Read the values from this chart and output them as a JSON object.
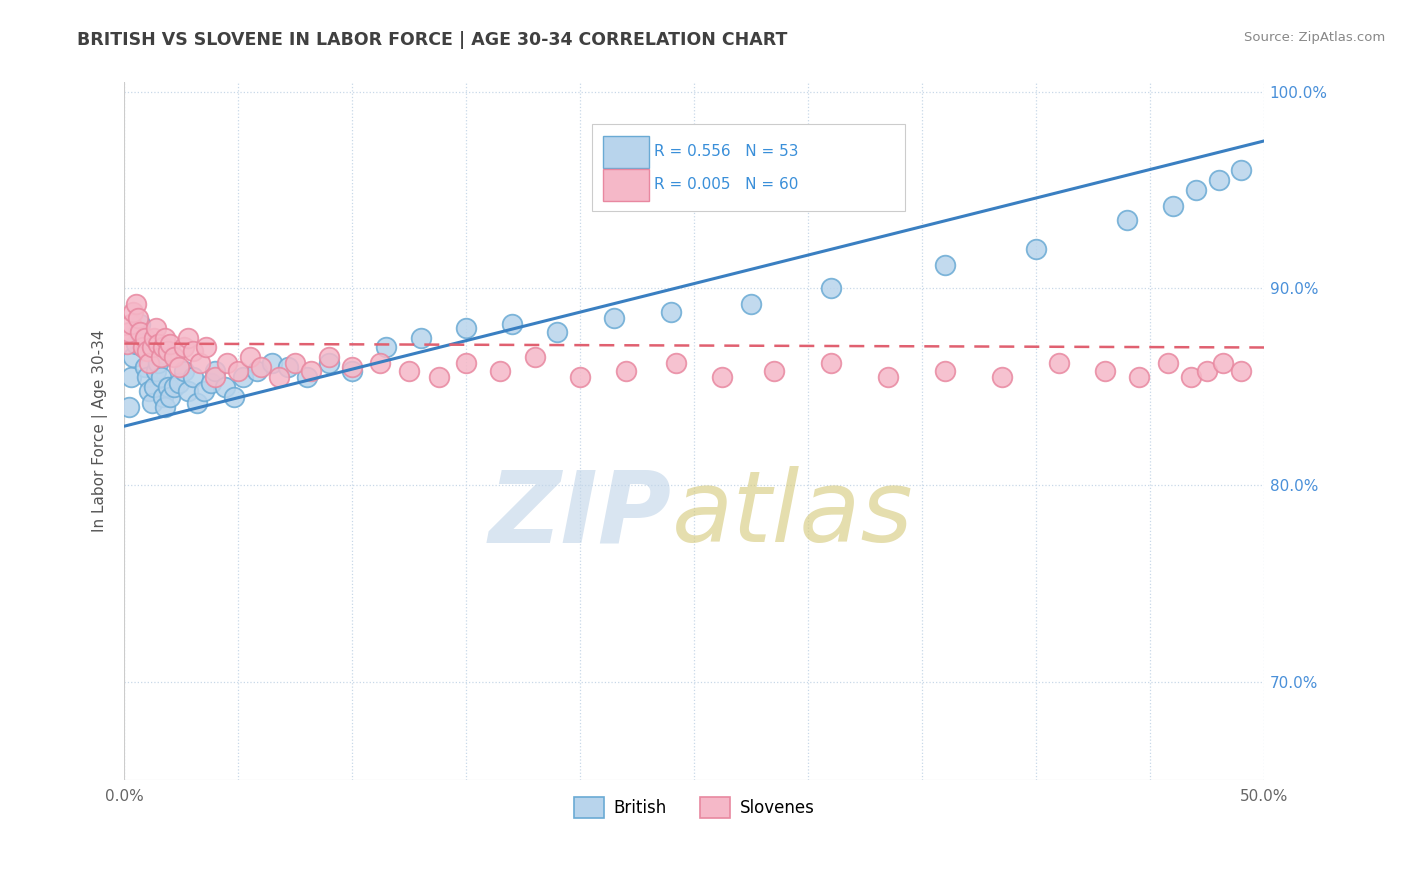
{
  "title": "BRITISH VS SLOVENE IN LABOR FORCE | AGE 30-34 CORRELATION CHART",
  "source": "Source: ZipAtlas.com",
  "ylabel": "In Labor Force | Age 30-34",
  "xlim": [
    0.0,
    0.5
  ],
  "ylim": [
    0.65,
    1.005
  ],
  "xticks": [
    0.0,
    0.05,
    0.1,
    0.15,
    0.2,
    0.25,
    0.3,
    0.35,
    0.4,
    0.45,
    0.5
  ],
  "yticks": [
    0.7,
    0.8,
    0.9,
    1.0
  ],
  "ytick_labels_right": [
    "70.0%",
    "80.0%",
    "90.0%",
    "100.0%"
  ],
  "british_R": 0.556,
  "british_N": 53,
  "slovene_R": 0.005,
  "slovene_N": 60,
  "british_color": "#b8d4ec",
  "slovene_color": "#f5b8c8",
  "british_edge_color": "#6aaad4",
  "slovene_edge_color": "#e888a0",
  "british_line_color": "#3a7fc1",
  "slovene_line_color": "#e06070",
  "legend_R_color": "#3a8fd9",
  "background_color": "#ffffff",
  "grid_color": "#c8d8e8",
  "title_color": "#404040",
  "source_color": "#888888",
  "british_x": [
    0.002,
    0.003,
    0.004,
    0.005,
    0.006,
    0.007,
    0.008,
    0.009,
    0.01,
    0.011,
    0.012,
    0.013,
    0.014,
    0.015,
    0.016,
    0.017,
    0.018,
    0.019,
    0.02,
    0.022,
    0.024,
    0.026,
    0.028,
    0.03,
    0.032,
    0.035,
    0.038,
    0.04,
    0.044,
    0.048,
    0.052,
    0.058,
    0.065,
    0.072,
    0.08,
    0.09,
    0.1,
    0.115,
    0.13,
    0.15,
    0.17,
    0.19,
    0.215,
    0.24,
    0.275,
    0.31,
    0.36,
    0.4,
    0.44,
    0.46,
    0.47,
    0.48,
    0.49
  ],
  "british_y": [
    0.84,
    0.855,
    0.865,
    0.872,
    0.878,
    0.882,
    0.87,
    0.86,
    0.855,
    0.848,
    0.842,
    0.85,
    0.858,
    0.862,
    0.855,
    0.845,
    0.84,
    0.85,
    0.845,
    0.85,
    0.852,
    0.858,
    0.848,
    0.855,
    0.842,
    0.848,
    0.852,
    0.858,
    0.85,
    0.845,
    0.855,
    0.858,
    0.862,
    0.86,
    0.855,
    0.862,
    0.858,
    0.87,
    0.875,
    0.88,
    0.882,
    0.878,
    0.885,
    0.888,
    0.892,
    0.9,
    0.912,
    0.92,
    0.935,
    0.942,
    0.95,
    0.955,
    0.96
  ],
  "slovene_x": [
    0.001,
    0.002,
    0.003,
    0.004,
    0.005,
    0.006,
    0.007,
    0.008,
    0.009,
    0.01,
    0.011,
    0.012,
    0.013,
    0.014,
    0.015,
    0.016,
    0.017,
    0.018,
    0.019,
    0.02,
    0.022,
    0.024,
    0.026,
    0.028,
    0.03,
    0.033,
    0.036,
    0.04,
    0.045,
    0.05,
    0.055,
    0.06,
    0.068,
    0.075,
    0.082,
    0.09,
    0.1,
    0.112,
    0.125,
    0.138,
    0.15,
    0.165,
    0.18,
    0.2,
    0.22,
    0.242,
    0.262,
    0.285,
    0.31,
    0.335,
    0.36,
    0.385,
    0.41,
    0.43,
    0.445,
    0.458,
    0.468,
    0.475,
    0.482,
    0.49
  ],
  "slovene_y": [
    0.872,
    0.878,
    0.882,
    0.888,
    0.892,
    0.885,
    0.878,
    0.87,
    0.875,
    0.868,
    0.862,
    0.87,
    0.875,
    0.88,
    0.872,
    0.865,
    0.87,
    0.875,
    0.868,
    0.872,
    0.865,
    0.86,
    0.87,
    0.875,
    0.868,
    0.862,
    0.87,
    0.855,
    0.862,
    0.858,
    0.865,
    0.86,
    0.855,
    0.862,
    0.858,
    0.865,
    0.86,
    0.862,
    0.858,
    0.855,
    0.862,
    0.858,
    0.865,
    0.855,
    0.858,
    0.862,
    0.855,
    0.858,
    0.862,
    0.855,
    0.858,
    0.855,
    0.862,
    0.858,
    0.855,
    0.862,
    0.855,
    0.858,
    0.862,
    0.858
  ],
  "british_line_x": [
    0.0,
    0.5
  ],
  "british_line_y": [
    0.83,
    0.975
  ],
  "slovene_line_x": [
    0.0,
    0.5
  ],
  "slovene_line_y": [
    0.872,
    0.87
  ]
}
